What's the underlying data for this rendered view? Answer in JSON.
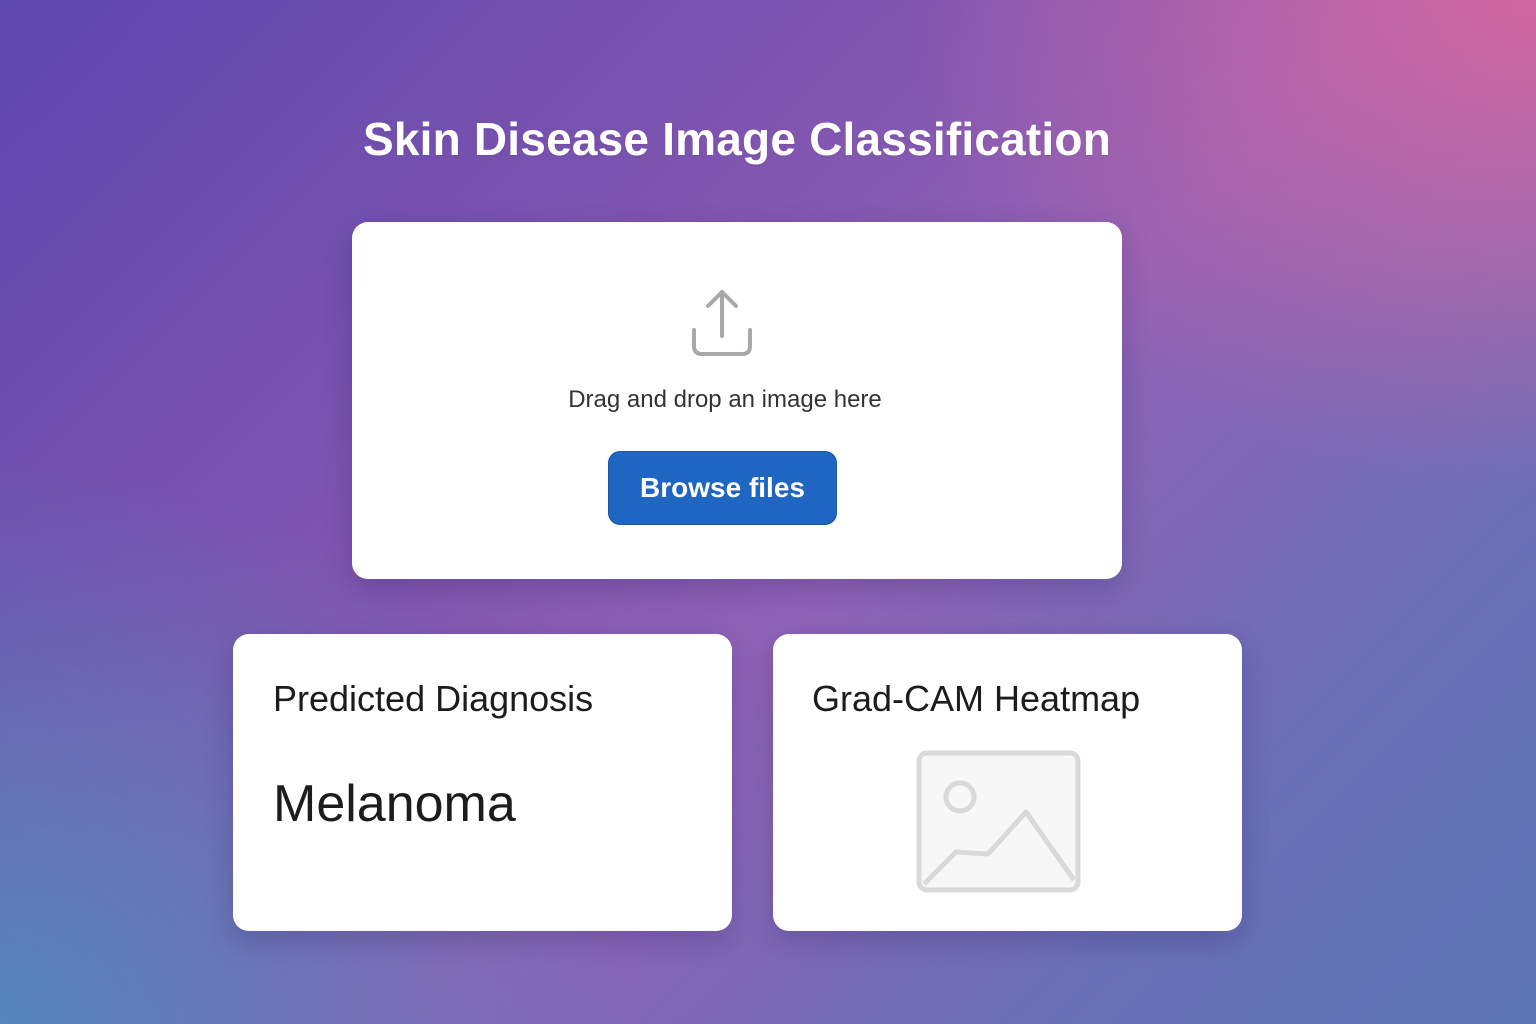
{
  "page": {
    "title": "Skin Disease Image Classification"
  },
  "upload": {
    "icon": "upload-icon",
    "prompt": "Drag and drop an image here",
    "browse_label": "Browse files",
    "button_color": "#1f66c2"
  },
  "diagnosis": {
    "title": "Predicted Diagnosis",
    "value": "Melanoma"
  },
  "heatmap": {
    "title": "Grad-CAM Heatmap",
    "icon": "image-placeholder-icon"
  }
}
